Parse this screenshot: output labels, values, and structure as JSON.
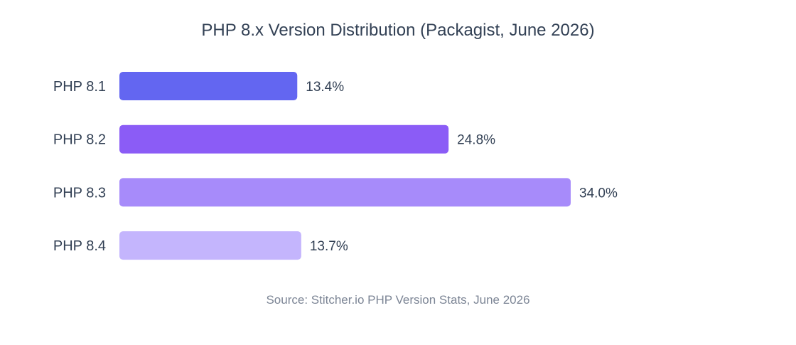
{
  "chart_data": {
    "type": "bar",
    "orientation": "horizontal",
    "title": "PHP 8.x Version Distribution (Packagist, June 2026)",
    "source": "Source: Stitcher.io PHP Version Stats, June 2026",
    "categories": [
      "PHP 8.1",
      "PHP 8.2",
      "PHP 8.3",
      "PHP 8.4"
    ],
    "values": [
      13.4,
      24.8,
      34.0,
      13.7
    ],
    "value_labels": [
      "13.4%",
      "24.8%",
      "34.0%",
      "13.7%"
    ],
    "colors": [
      "#6366f1",
      "#8b5cf6",
      "#a78bfa",
      "#c4b5fd"
    ],
    "grid": false,
    "unit": "%"
  }
}
